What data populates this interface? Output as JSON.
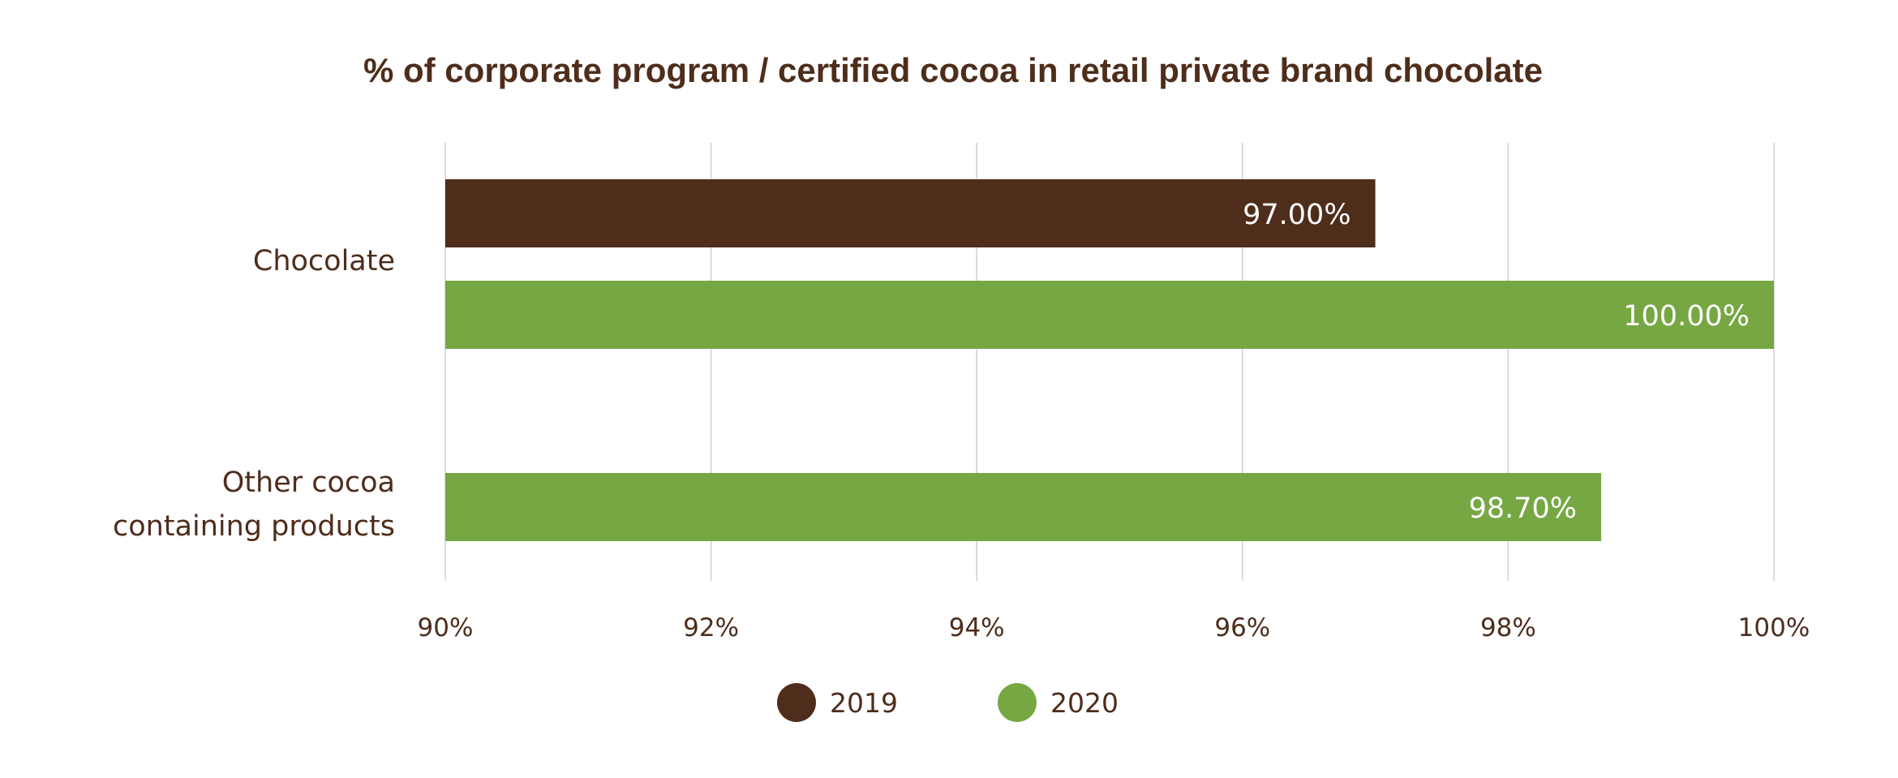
{
  "chart_data": {
    "type": "bar",
    "orientation": "horizontal",
    "title": "% of corporate program / certified cocoa in retail private brand chocolate",
    "categories": [
      {
        "lines": [
          "Chocolate"
        ]
      },
      {
        "lines": [
          "Other cocoa",
          "containing products"
        ]
      }
    ],
    "series": [
      {
        "name": "2019",
        "color": "#4e2d1b",
        "values": [
          97.0,
          null
        ],
        "labels": [
          "97.00%",
          null
        ]
      },
      {
        "name": "2020",
        "color": "#76a743",
        "values": [
          100.0,
          98.7
        ],
        "labels": [
          "100.00%",
          "98.70%"
        ]
      }
    ],
    "xlim": [
      90,
      100
    ],
    "xticks": [
      90,
      92,
      94,
      96,
      98,
      100
    ],
    "xtick_labels": [
      "90%",
      "92%",
      "94%",
      "96%",
      "98%",
      "100%"
    ],
    "grid": "vertical",
    "legend_position": "bottom"
  }
}
